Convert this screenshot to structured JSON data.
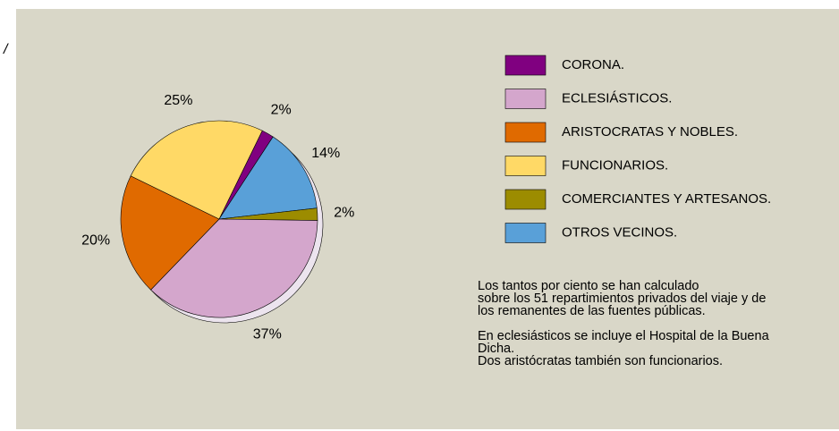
{
  "side_mark": "/",
  "chart_data": {
    "type": "pie",
    "series": [
      {
        "name": "CORONA.",
        "color": "#800080",
        "values": [
          2
        ],
        "value_labels": [
          "2%"
        ]
      },
      {
        "name": "ECLESIÁSTICOS.",
        "color": "#d4a6cc",
        "values": [
          37
        ],
        "value_labels": [
          "37%"
        ]
      },
      {
        "name": "ARISTOCRATAS Y NOBLES.",
        "color": "#e06a00",
        "values": [
          20
        ],
        "value_labels": [
          "20%"
        ]
      },
      {
        "name": "FUNCIONARIOS.",
        "color": "#ffd966",
        "values": [
          25
        ],
        "value_labels": [
          "25%"
        ]
      },
      {
        "name": "COMERCIANTES Y ARTESANOS.",
        "color": "#9c8c00",
        "values": [
          2
        ],
        "value_labels": [
          "2%"
        ]
      },
      {
        "name": "OTROS VECINOS.",
        "color": "#59a0d8",
        "values": [
          14
        ],
        "value_labels": [
          "14%"
        ]
      }
    ],
    "notes": [
      [
        "Los tantos por ciento se han calculado",
        "sobre los 51 repartimientos privados del viaje y de",
        "los remanentes de las fuentes públicas."
      ],
      [
        "En eclesiásticos se incluye el Hospital de la Buena",
        "Dicha.",
        "Dos aristócratas también son funcionarios."
      ]
    ]
  }
}
